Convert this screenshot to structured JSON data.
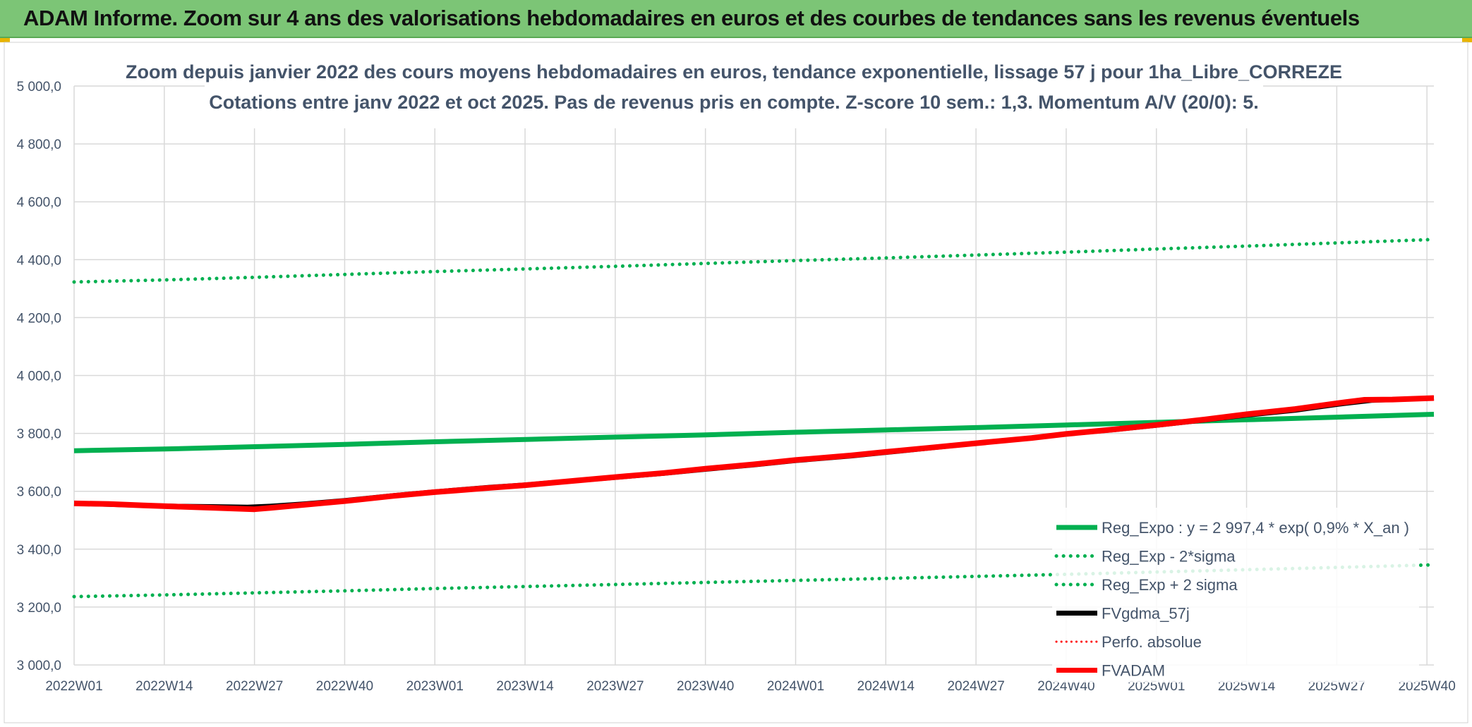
{
  "banner": {
    "title": "ADAM Informe. Zoom sur 4 ans des valorisations hebdomadaires en euros et des courbes de tendances sans les revenus éventuels"
  },
  "colors": {
    "banner_bg": "#7cc576",
    "green": "#00b050",
    "red": "#ff0000",
    "black": "#000000",
    "text": "#44546a",
    "grid": "#d9d9d9"
  },
  "chart_data": {
    "type": "line",
    "title": "Zoom depuis janvier 2022 des cours moyens hebdomadaires en euros, tendance exponentielle, lissage 57 j pour 1ha_Libre_CORREZE",
    "subtitle": "Cotations entre janv 2022 et oct 2025. Pas de revenus pris en compte. Z-score 10 sem.: 1,3. Momentum A/V (20/0): 5.",
    "x_tick_labels": [
      "2022W01",
      "2022W14",
      "2022W27",
      "2022W40",
      "2023W01",
      "2023W14",
      "2023W27",
      "2023W40",
      "2024W01",
      "2024W14",
      "2024W27",
      "2024W40",
      "2025W01",
      "2025W14",
      "2025W27",
      "2025W40"
    ],
    "x_range_weeks": [
      0,
      196
    ],
    "y_tick_labels": [
      "3 000,0",
      "3 200,0",
      "3 400,0",
      "3 600,0",
      "3 800,0",
      "4 000,0",
      "4 200,0",
      "4 400,0",
      "4 600,0",
      "4 800,0",
      "5 000,0"
    ],
    "ylim": [
      3000,
      5000
    ],
    "grid": true,
    "legend_position": "right",
    "series": [
      {
        "name": "Reg_Expo : y = 2 997,4 * exp( 0,9% *  X_an )",
        "color": "#00b050",
        "style": "solid",
        "width": 7,
        "points": [
          [
            0,
            3740
          ],
          [
            13,
            3746
          ],
          [
            26,
            3754
          ],
          [
            39,
            3762
          ],
          [
            52,
            3771
          ],
          [
            65,
            3779
          ],
          [
            78,
            3787
          ],
          [
            91,
            3795
          ],
          [
            104,
            3804
          ],
          [
            117,
            3812
          ],
          [
            130,
            3820
          ],
          [
            143,
            3829
          ],
          [
            156,
            3838
          ],
          [
            169,
            3847
          ],
          [
            182,
            3856
          ],
          [
            196,
            3866
          ]
        ]
      },
      {
        "name": "Reg_Exp - 2*sigma",
        "color": "#00b050",
        "style": "dotted",
        "width": 5,
        "points": [
          [
            0,
            3236
          ],
          [
            13,
            3242
          ],
          [
            26,
            3249
          ],
          [
            39,
            3256
          ],
          [
            52,
            3264
          ],
          [
            65,
            3271
          ],
          [
            78,
            3278
          ],
          [
            91,
            3285
          ],
          [
            104,
            3292
          ],
          [
            117,
            3299
          ],
          [
            130,
            3306
          ],
          [
            143,
            3313
          ],
          [
            156,
            3321
          ],
          [
            169,
            3329
          ],
          [
            182,
            3337
          ],
          [
            196,
            3346
          ]
        ]
      },
      {
        "name": "Reg_Exp + 2 sigma",
        "color": "#00b050",
        "style": "dotted",
        "width": 5,
        "points": [
          [
            0,
            4323
          ],
          [
            13,
            4330
          ],
          [
            26,
            4339
          ],
          [
            39,
            4349
          ],
          [
            52,
            4359
          ],
          [
            65,
            4368
          ],
          [
            78,
            4377
          ],
          [
            91,
            4387
          ],
          [
            104,
            4397
          ],
          [
            117,
            4406
          ],
          [
            130,
            4416
          ],
          [
            143,
            4426
          ],
          [
            156,
            4437
          ],
          [
            169,
            4447
          ],
          [
            182,
            4458
          ],
          [
            196,
            4470
          ]
        ]
      },
      {
        "name": "FVgdma_57j",
        "color": "#000000",
        "style": "solid",
        "width": 7,
        "points": [
          [
            0,
            3558
          ],
          [
            5,
            3555
          ],
          [
            10,
            3551
          ],
          [
            15,
            3548
          ],
          [
            20,
            3547
          ],
          [
            25,
            3545
          ],
          [
            28,
            3548
          ],
          [
            33,
            3556
          ],
          [
            39,
            3568
          ],
          [
            46,
            3585
          ],
          [
            52,
            3598
          ],
          [
            60,
            3614
          ],
          [
            65,
            3622
          ],
          [
            72,
            3636
          ],
          [
            78,
            3648
          ],
          [
            85,
            3662
          ],
          [
            91,
            3676
          ],
          [
            98,
            3691
          ],
          [
            104,
            3706
          ],
          [
            112,
            3722
          ],
          [
            117,
            3734
          ],
          [
            124,
            3751
          ],
          [
            130,
            3766
          ],
          [
            138,
            3784
          ],
          [
            143,
            3798
          ],
          [
            150,
            3813
          ],
          [
            156,
            3828
          ],
          [
            163,
            3846
          ],
          [
            169,
            3863
          ],
          [
            176,
            3880
          ],
          [
            182,
            3900
          ],
          [
            187,
            3914
          ],
          [
            190,
            3917
          ],
          [
            196,
            3922
          ]
        ]
      },
      {
        "name": "Perfo. absolue",
        "color": "#ff0000",
        "style": "dotted",
        "width": 3,
        "points": []
      },
      {
        "name": "FVADAM",
        "color": "#ff0000",
        "style": "solid",
        "width": 8,
        "points": [
          [
            0,
            3558
          ],
          [
            5,
            3556
          ],
          [
            10,
            3551
          ],
          [
            15,
            3547
          ],
          [
            20,
            3543
          ],
          [
            26,
            3538
          ],
          [
            28,
            3542
          ],
          [
            33,
            3553
          ],
          [
            39,
            3566
          ],
          [
            46,
            3584
          ],
          [
            52,
            3597
          ],
          [
            60,
            3612
          ],
          [
            65,
            3621
          ],
          [
            72,
            3636
          ],
          [
            78,
            3649
          ],
          [
            85,
            3663
          ],
          [
            91,
            3678
          ],
          [
            98,
            3693
          ],
          [
            104,
            3708
          ],
          [
            112,
            3724
          ],
          [
            117,
            3736
          ],
          [
            124,
            3752
          ],
          [
            130,
            3766
          ],
          [
            138,
            3784
          ],
          [
            143,
            3798
          ],
          [
            150,
            3814
          ],
          [
            156,
            3829
          ],
          [
            163,
            3848
          ],
          [
            169,
            3866
          ],
          [
            176,
            3884
          ],
          [
            182,
            3904
          ],
          [
            186,
            3916
          ],
          [
            190,
            3917
          ],
          [
            196,
            3922
          ]
        ]
      }
    ]
  }
}
